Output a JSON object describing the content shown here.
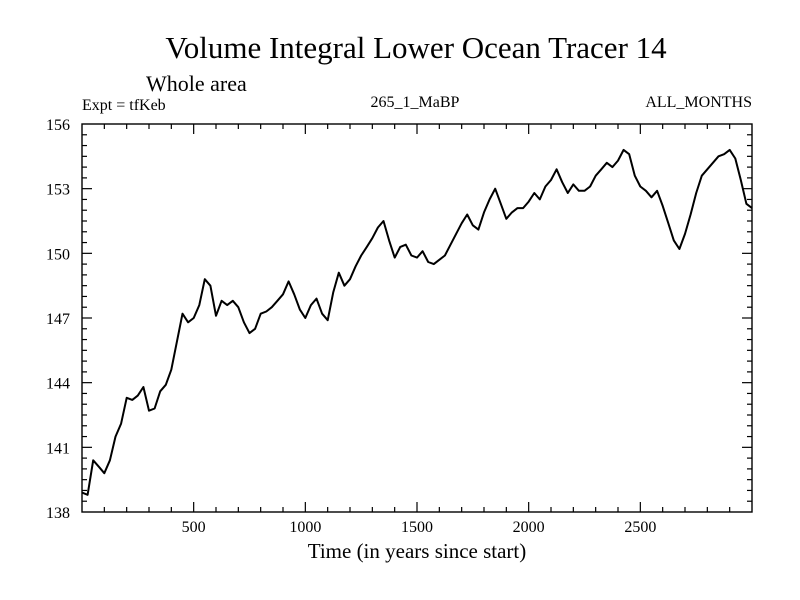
{
  "chart_data": {
    "type": "line",
    "title": "Volume Integral Lower Ocean Tracer 14",
    "subtitle": "Whole area",
    "left_label": "Expt = tfKeb",
    "center_label": "265_1_MaBP",
    "right_label": "ALL_MONTHS",
    "xlabel": "Time (in years since start)",
    "ylabel": "",
    "xlim": [
      0,
      3000
    ],
    "ylim": [
      138,
      156
    ],
    "xticks": [
      500,
      1000,
      1500,
      2000,
      2500
    ],
    "xtick_labels": [
      "500",
      "1000",
      "1500",
      "2000",
      "2500"
    ],
    "yticks": [
      138,
      141,
      144,
      147,
      150,
      153,
      156
    ],
    "ytick_labels": [
      "138",
      "141",
      "144",
      "147",
      "150",
      "153",
      "156"
    ],
    "grid": false,
    "series": [
      {
        "name": "",
        "color": "#000000",
        "x": [
          0,
          25,
          50,
          75,
          100,
          125,
          150,
          175,
          200,
          225,
          250,
          275,
          300,
          325,
          350,
          375,
          400,
          425,
          450,
          475,
          500,
          525,
          550,
          575,
          600,
          625,
          650,
          675,
          700,
          725,
          750,
          775,
          800,
          825,
          850,
          875,
          900,
          925,
          950,
          975,
          1000,
          1025,
          1050,
          1075,
          1100,
          1125,
          1150,
          1175,
          1200,
          1225,
          1250,
          1275,
          1300,
          1325,
          1350,
          1375,
          1400,
          1425,
          1450,
          1475,
          1500,
          1525,
          1550,
          1575,
          1600,
          1625,
          1650,
          1675,
          1700,
          1725,
          1750,
          1775,
          1800,
          1825,
          1850,
          1875,
          1900,
          1925,
          1950,
          1975,
          2000,
          2025,
          2050,
          2075,
          2100,
          2125,
          2150,
          2175,
          2200,
          2225,
          2250,
          2275,
          2300,
          2325,
          2350,
          2375,
          2400,
          2425,
          2450,
          2475,
          2500,
          2525,
          2550,
          2575,
          2600,
          2625,
          2650,
          2675,
          2700,
          2725,
          2750,
          2775,
          2800,
          2825,
          2850,
          2875,
          2900,
          2925,
          2950,
          2975,
          3000
        ],
        "values": [
          138.9,
          138.8,
          140.4,
          140.1,
          139.8,
          140.4,
          141.5,
          142.1,
          143.3,
          143.2,
          143.4,
          143.8,
          142.7,
          142.8,
          143.6,
          143.9,
          144.6,
          145.9,
          147.2,
          146.8,
          147.0,
          147.6,
          148.8,
          148.5,
          147.1,
          147.8,
          147.6,
          147.8,
          147.5,
          146.8,
          146.3,
          146.5,
          147.2,
          147.3,
          147.5,
          147.8,
          148.1,
          148.7,
          148.1,
          147.4,
          147.0,
          147.6,
          147.9,
          147.2,
          146.9,
          148.2,
          149.1,
          148.5,
          148.8,
          149.4,
          149.9,
          150.3,
          150.7,
          151.2,
          151.5,
          150.6,
          149.8,
          150.3,
          150.4,
          149.9,
          149.8,
          150.1,
          149.6,
          149.5,
          149.7,
          149.9,
          150.4,
          150.9,
          151.4,
          151.8,
          151.3,
          151.1,
          151.9,
          152.5,
          153.0,
          152.3,
          151.6,
          151.9,
          152.1,
          152.1,
          152.4,
          152.8,
          152.5,
          153.1,
          153.4,
          153.9,
          153.3,
          152.8,
          153.2,
          152.9,
          152.9,
          153.1,
          153.6,
          153.9,
          154.2,
          154.0,
          154.3,
          154.8,
          154.6,
          153.6,
          153.1,
          152.9,
          152.6,
          152.9,
          152.2,
          151.4,
          150.6,
          150.2,
          150.9,
          151.8,
          152.8,
          153.6,
          153.9,
          154.2,
          154.5,
          154.6,
          154.8,
          154.4,
          153.4,
          152.3,
          152.1
        ]
      }
    ]
  }
}
